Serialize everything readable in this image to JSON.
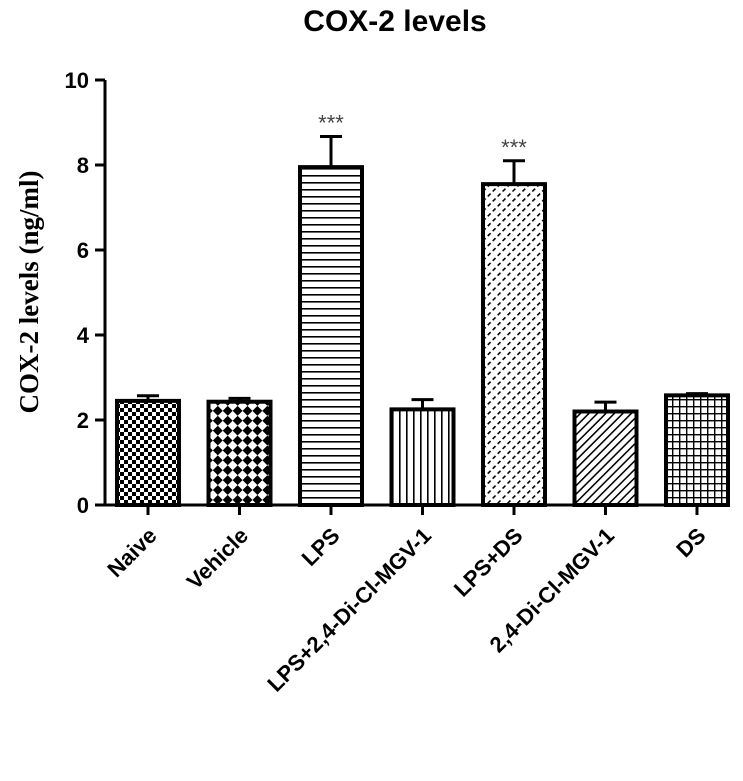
{
  "chart_data": {
    "type": "bar",
    "title": "COX-2 levels",
    "xlabel": "",
    "ylabel": "COX-2 levels (ng/ml)",
    "ylim": [
      0,
      10
    ],
    "yticks": [
      "0",
      "2",
      "4",
      "6",
      "8",
      "10"
    ],
    "grid": false,
    "categories": [
      "Naive",
      "Vehicle",
      "LPS",
      "LPS+2,4-Di-Cl-MGV-1",
      "LPS+DS",
      "2,4-Di-Cl-MGV-1",
      "DS"
    ],
    "values": [
      2.45,
      2.43,
      7.95,
      2.25,
      7.55,
      2.2,
      2.58
    ],
    "errors": [
      0.12,
      0.08,
      0.72,
      0.23,
      0.55,
      0.22,
      0.04
    ],
    "significance": [
      "",
      "",
      "***",
      "",
      "***",
      "",
      ""
    ],
    "patterns": [
      "small-checker",
      "large-checker",
      "horizontal-lines",
      "vertical-lines",
      "diagonal-dashes",
      "diagonal-lines",
      "grid"
    ],
    "colors": {
      "bar_stroke": "#000000",
      "bar_fill": "#ffffff",
      "pattern": "#000000",
      "significance": "#444444"
    }
  }
}
